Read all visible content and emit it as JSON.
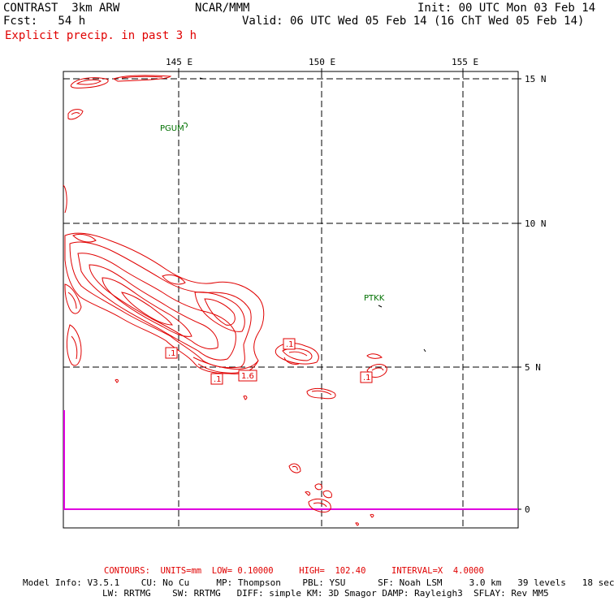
{
  "header": {
    "line1_left": "CONTRAST  3km ARW",
    "line2_left": "Fcst:   54 h",
    "center": "NCAR/MMM",
    "init": "Init: 00 UTC Mon 03 Feb 14",
    "valid": "Valid: 06 UTC Wed 05 Feb 14 (16 ChT Wed 05 Feb 14)",
    "field": "Explicit precip. in past 3 h"
  },
  "map": {
    "lon_labels": [
      "145 E",
      "150 E",
      "155 E"
    ],
    "lat_labels": [
      "15 N",
      "10 N",
      "5 N",
      "0"
    ],
    "stations": [
      "PGUM",
      "PTKK"
    ],
    "contour_labels": [
      ".1",
      ".1",
      "1.6",
      ".1",
      ".1"
    ],
    "colors": {
      "contour": "#e00000",
      "grid": "#000000",
      "station": "#007000",
      "boundary": "#e000e0"
    }
  },
  "footer": {
    "contours": "CONTOURS:  UNITS=mm  LOW= 0.10000     HIGH=  102.40     INTERVAL=X  4.0000",
    "model_line1": "Model Info: V3.5.1    CU: No Cu     MP: Thompson    PBL: YSU      SF: Noah LSM     3.0 km   39 levels   18 sec",
    "model_line2": "LW: RRTMG    SW: RRTMG   DIFF: simple KM: 3D Smagor DAMP: Rayleigh3  SFLAY: Rev MM5"
  }
}
